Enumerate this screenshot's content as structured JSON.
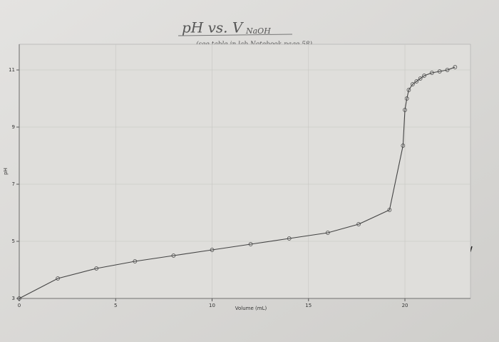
{
  "chart_data": {
    "type": "line",
    "title": "pH vs. V",
    "title_sub": "NaOH",
    "subtitle": "(see table in lab Notebook page 58)",
    "x_label": "Volume (mL)",
    "y_label": "pH",
    "x": [
      0,
      2,
      4,
      6,
      8,
      10,
      12,
      14,
      16,
      17.6,
      19.2,
      19.9,
      20.0,
      20.1,
      20.2,
      20.4,
      20.6,
      20.8,
      21.0,
      21.4,
      21.8,
      22.2,
      22.6
    ],
    "series": [
      {
        "name": "pH",
        "color": "#444444",
        "values": [
          3.0,
          3.7,
          4.05,
          4.3,
          4.5,
          4.7,
          4.9,
          5.1,
          5.3,
          5.6,
          6.1,
          8.35,
          9.6,
          10.0,
          10.3,
          10.5,
          10.6,
          10.7,
          10.8,
          10.9,
          10.95,
          11.0,
          11.1
        ]
      }
    ],
    "xlim": [
      0,
      23.4
    ],
    "ylim": [
      3,
      11.9
    ],
    "xticks": [
      0,
      5,
      10,
      15,
      20
    ],
    "yticks": [
      3,
      5,
      7,
      9,
      11
    ],
    "grid": true
  }
}
